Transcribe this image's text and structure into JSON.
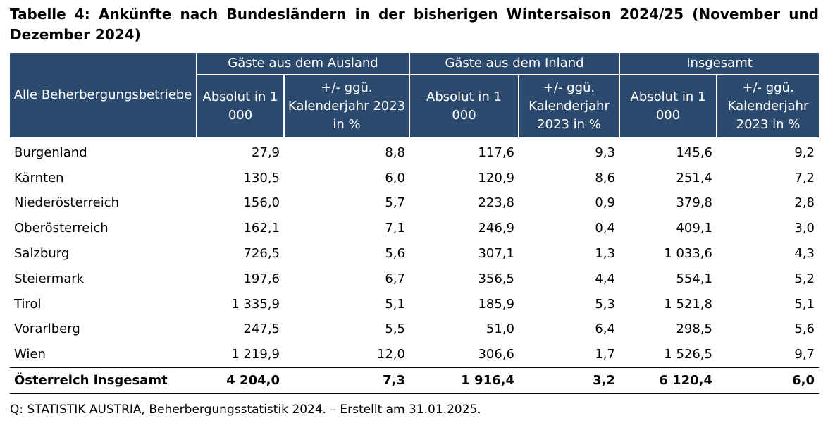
{
  "title": "Tabelle 4: Ankünfte nach Bundesländern in der bisherigen Wintersaison 2024/25 (November und Dezember 2024)",
  "header": {
    "row_label": "Alle Beherbergungsbetriebe",
    "groups": [
      "Gäste aus dem Ausland",
      "Gäste aus dem Inland",
      "Insgesamt"
    ],
    "absolut": "Absolut in 1 000",
    "change": "+/- ggü. Kalenderjahr 2023 in %"
  },
  "rows": [
    {
      "name": "Burgenland",
      "values": [
        "27,9",
        "8,8",
        "117,6",
        "9,3",
        "145,6",
        "9,2"
      ]
    },
    {
      "name": "Kärnten",
      "values": [
        "130,5",
        "6,0",
        "120,9",
        "8,6",
        "251,4",
        "7,2"
      ]
    },
    {
      "name": "Niederösterreich",
      "values": [
        "156,0",
        "5,7",
        "223,8",
        "0,9",
        "379,8",
        "2,8"
      ]
    },
    {
      "name": "Oberösterreich",
      "values": [
        "162,1",
        "7,1",
        "246,9",
        "0,4",
        "409,1",
        "3,0"
      ]
    },
    {
      "name": "Salzburg",
      "values": [
        "726,5",
        "5,6",
        "307,1",
        "1,3",
        "1 033,6",
        "4,3"
      ]
    },
    {
      "name": "Steiermark",
      "values": [
        "197,6",
        "6,7",
        "356,5",
        "4,4",
        "554,1",
        "5,2"
      ]
    },
    {
      "name": "Tirol",
      "values": [
        "1 335,9",
        "5,1",
        "185,9",
        "5,3",
        "1 521,8",
        "5,1"
      ]
    },
    {
      "name": "Vorarlberg",
      "values": [
        "247,5",
        "5,5",
        "51,0",
        "6,4",
        "298,5",
        "5,6"
      ]
    },
    {
      "name": "Wien",
      "values": [
        "1 219,9",
        "12,0",
        "306,6",
        "1,7",
        "1 526,5",
        "9,7"
      ]
    }
  ],
  "total": {
    "name": "Österreich insgesamt",
    "values": [
      "4 204,0",
      "7,3",
      "1 916,4",
      "3,2",
      "6 120,4",
      "6,0"
    ]
  },
  "source": "Q: STATISTIK AUSTRIA, Beherbergungsstatistik 2024. – Erstellt am 31.01.2025.",
  "colors": {
    "header_bg": "#2c4a6e",
    "header_text": "#ffffff"
  }
}
